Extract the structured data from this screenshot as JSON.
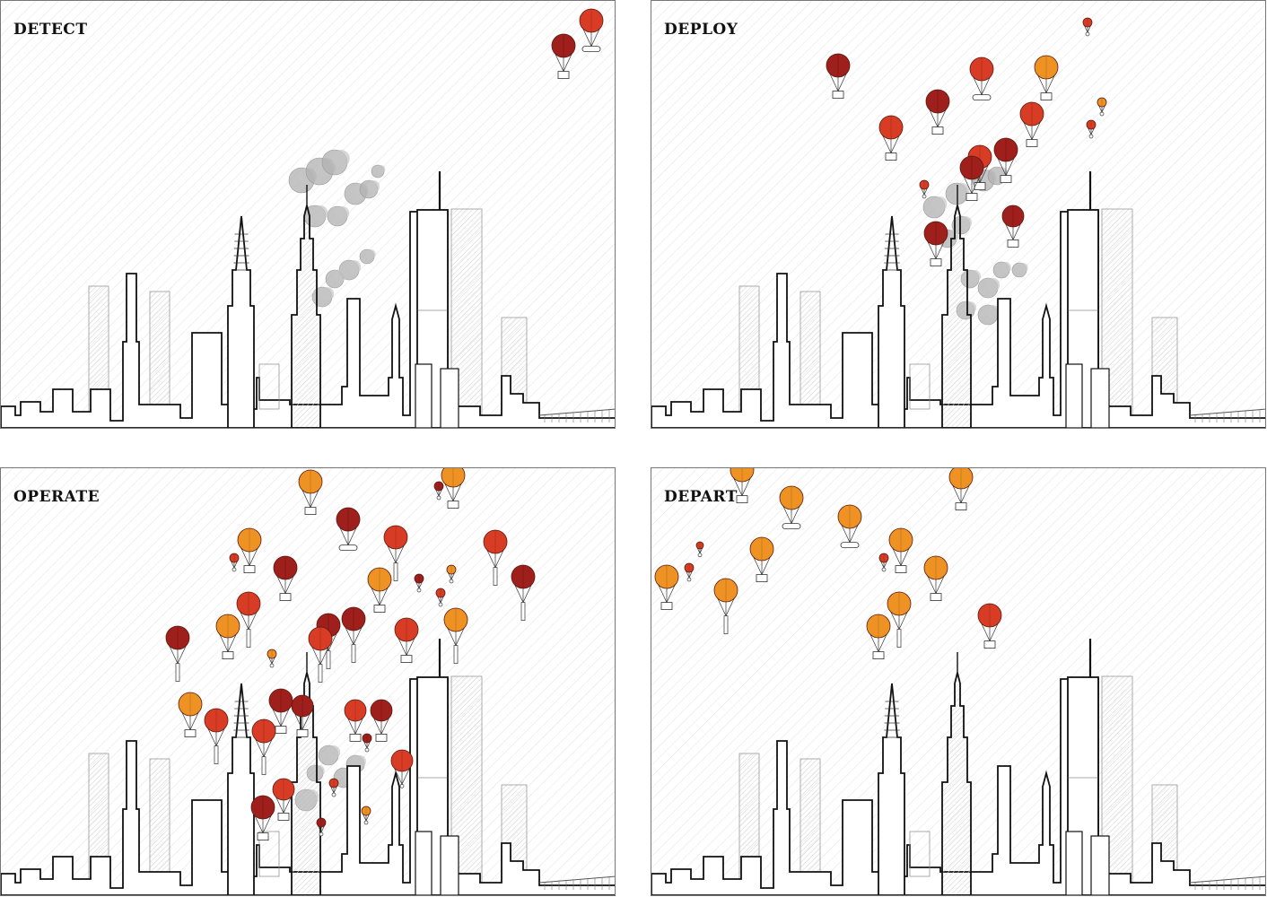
{
  "panels": [
    {
      "title": "DETECT"
    },
    {
      "title": "DEPLOY"
    },
    {
      "title": "OPERATE"
    },
    {
      "title": "DEPART"
    }
  ],
  "colors": {
    "dark_red": "#9e1f1b",
    "red": "#d93c24",
    "orange": "#ef9224",
    "smoke": "#b0b0b0",
    "line": "#111111",
    "hatch": "#e2e2e2"
  },
  "scenes": {
    "detect": {
      "smoke": true,
      "balloons": [
        "dark_red",
        "red"
      ]
    },
    "deploy": {
      "smoke": true,
      "balloons": [
        "dark_red",
        "red",
        "orange"
      ]
    },
    "operate": {
      "smoke": true,
      "balloons": [
        "dark_red",
        "red",
        "orange"
      ]
    },
    "depart": {
      "smoke": false,
      "balloons": [
        "orange",
        "red"
      ]
    }
  }
}
